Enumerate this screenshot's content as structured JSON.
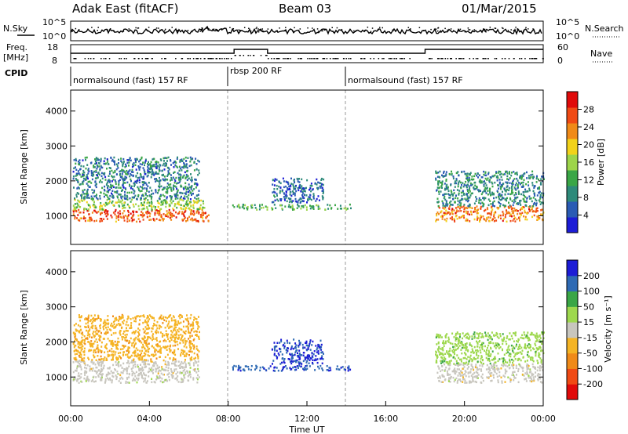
{
  "header": {
    "station": "Adak East (fitACF)",
    "beam": "Beam 03",
    "date": "01/Mar/2015"
  },
  "left_labels": {
    "nsky": "N.Sky",
    "freq": "Freq.",
    "freq_unit": "[MHz]",
    "cpid": "CPID"
  },
  "right_labels": {
    "nsearch": "N.Search",
    "nave": "Nave"
  },
  "noise_panel": {
    "ticks_left": [
      "10^5",
      "10^0"
    ],
    "ticks_right": [
      "10^5",
      "10^0"
    ]
  },
  "freq_panel": {
    "ticks_left": [
      "18",
      "8"
    ],
    "ticks_right": [
      "60",
      "0"
    ]
  },
  "cpid_segments": [
    {
      "label": "normalsound (fast) 157 RF",
      "start": 0,
      "end": 8
    },
    {
      "label": "rbsp 200 RF",
      "start": 8,
      "end": 14
    },
    {
      "label": "normalsound (fast) 157 RF",
      "start": 14,
      "end": 24
    }
  ],
  "chart_data": [
    {
      "type": "heatmap",
      "title": "Power",
      "ylabel": "Slant Range [km]",
      "ylim": [
        180,
        4600
      ],
      "yticks": [
        "4000",
        "3000",
        "2000",
        "1000"
      ],
      "colorbar_label": "Power [dB]",
      "colorbar_ticks": [
        "28",
        "24",
        "20",
        "16",
        "12",
        "8",
        "4"
      ],
      "colorbar_range": [
        0,
        32
      ],
      "colors": [
        "#1c1cd6",
        "#2a5bb4",
        "#2e8a7a",
        "#3aa646",
        "#9dd44a",
        "#f2d21a",
        "#f08a18",
        "#f04a14",
        "#e00a0a"
      ],
      "scatter_regions": [
        {
          "t": [
            0.1,
            7.0
          ],
          "r": [
            860,
            1200
          ],
          "value": 26
        },
        {
          "t": [
            0.1,
            6.8
          ],
          "r": [
            1200,
            1500
          ],
          "value": 16
        },
        {
          "t": [
            0.1,
            6.5
          ],
          "r": [
            1500,
            2700
          ],
          "value": 8
        },
        {
          "t": [
            8.2,
            14.2
          ],
          "r": [
            1200,
            1350
          ],
          "value": 12
        },
        {
          "t": [
            10.2,
            12.8
          ],
          "r": [
            1400,
            2100
          ],
          "value": 6
        },
        {
          "t": [
            18.5,
            24
          ],
          "r": [
            860,
            1300
          ],
          "value": 24
        },
        {
          "t": [
            18.5,
            24
          ],
          "r": [
            1300,
            2300
          ],
          "value": 9
        }
      ]
    },
    {
      "type": "heatmap",
      "title": "Velocity",
      "xlabel": "Time UT",
      "ylabel": "Slant Range [km]",
      "ylim": [
        180,
        4600
      ],
      "yticks": [
        "4000",
        "3000",
        "2000",
        "1000"
      ],
      "xticks": [
        "00:00",
        "04:00",
        "08:00",
        "12:00",
        "16:00",
        "20:00",
        "00:00"
      ],
      "colorbar_label": "Velocity [m s⁻¹]",
      "colorbar_ticks": [
        "200",
        "100",
        "50",
        "15",
        "-15",
        "-50",
        "-100",
        "-200"
      ],
      "colorbar_range": [
        -250,
        250
      ],
      "colors": [
        "#e00a0a",
        "#f04a14",
        "#f08a18",
        "#f5b424",
        "#c8c6be",
        "#9ed84e",
        "#3aa646",
        "#2e6ab4",
        "#1c1cd6"
      ],
      "scatter_regions": [
        {
          "t": [
            0.1,
            6.5
          ],
          "r": [
            860,
            1500
          ],
          "value": 0
        },
        {
          "t": [
            0.1,
            6.5
          ],
          "r": [
            1500,
            2800
          ],
          "value": -60
        },
        {
          "t": [
            8.2,
            14.2
          ],
          "r": [
            1200,
            1350
          ],
          "value": 180
        },
        {
          "t": [
            10.2,
            12.8
          ],
          "r": [
            1400,
            2100
          ],
          "value": 200
        },
        {
          "t": [
            18.5,
            24
          ],
          "r": [
            860,
            1400
          ],
          "value": 0
        },
        {
          "t": [
            18.5,
            24
          ],
          "r": [
            1400,
            2300
          ],
          "value": 60
        }
      ]
    }
  ]
}
